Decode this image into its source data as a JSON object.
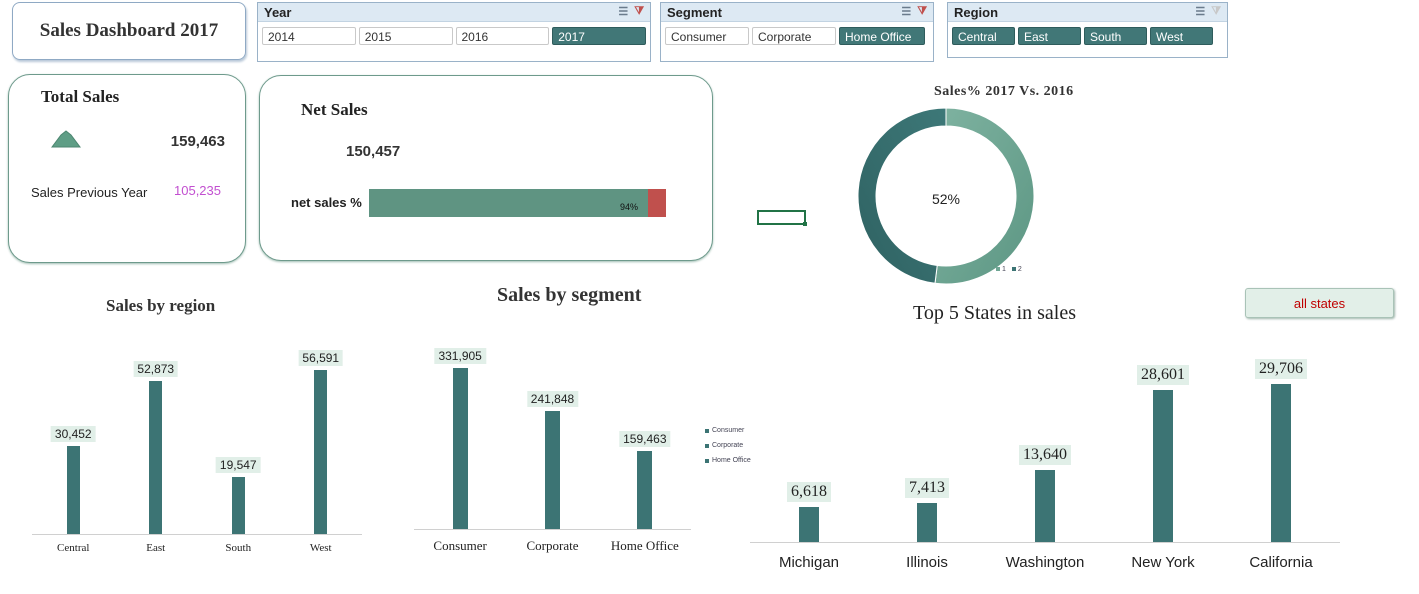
{
  "dashboard_title": "Sales Dashboard 2017",
  "slicers": {
    "year": {
      "title": "Year",
      "items": [
        "2014",
        "2015",
        "2016",
        "2017"
      ],
      "selected": "2017"
    },
    "segment": {
      "title": "Segment",
      "items": [
        "Consumer",
        "Corporate",
        "Home Office"
      ],
      "selected": "Home Office"
    },
    "region": {
      "title": "Region",
      "items": [
        "Central",
        "East",
        "South",
        "West"
      ],
      "selected": [
        "Central",
        "East",
        "South",
        "West"
      ]
    }
  },
  "total_sales": {
    "title": "Total Sales",
    "value": "159,463",
    "prev_label": "Sales Previous Year",
    "prev_value": "105,235"
  },
  "net_sales": {
    "title": "Net Sales",
    "value": "150,457",
    "bar_label": "net sales %",
    "percent_label": "94%",
    "fraction": 0.94
  },
  "donut": {
    "title": "Sales% 2017 Vs. 2016",
    "center_label": "52%",
    "fraction": 0.52,
    "legend": [
      "1",
      "2"
    ]
  },
  "all_states_button": "all states",
  "colors": {
    "teal": "#3c7474",
    "teal_light": "#5f9482",
    "red": "#c0504d",
    "purple": "#c24fd0",
    "chip": "#e1efe8",
    "button_text": "#c00000"
  },
  "chart_data": [
    {
      "type": "bar",
      "title": "Sales by region",
      "categories": [
        "Central",
        "East",
        "South",
        "West"
      ],
      "values": [
        30452,
        52873,
        19547,
        56591
      ],
      "labels": [
        "30,452",
        "52,873",
        "19,547",
        "56,591"
      ],
      "ylim": [
        0,
        60000
      ]
    },
    {
      "type": "bar",
      "title": "Sales by segment",
      "categories": [
        "Consumer",
        "Corporate",
        "Home Office"
      ],
      "values": [
        331905,
        241848,
        159463
      ],
      "labels": [
        "331,905",
        "241,848",
        "159,463"
      ],
      "legend": [
        "Consumer",
        "Corporate",
        "Home Office"
      ],
      "ylim": [
        0,
        360000
      ]
    },
    {
      "type": "bar",
      "title": "Top 5 States in sales",
      "categories": [
        "Michigan",
        "Illinois",
        "Washington",
        "New York",
        "California"
      ],
      "values": [
        6618,
        7413,
        13640,
        28601,
        29706
      ],
      "labels": [
        "6,618",
        "7,413",
        "13,640",
        "28,601",
        "29,706"
      ],
      "ylim": [
        0,
        32000
      ]
    }
  ]
}
